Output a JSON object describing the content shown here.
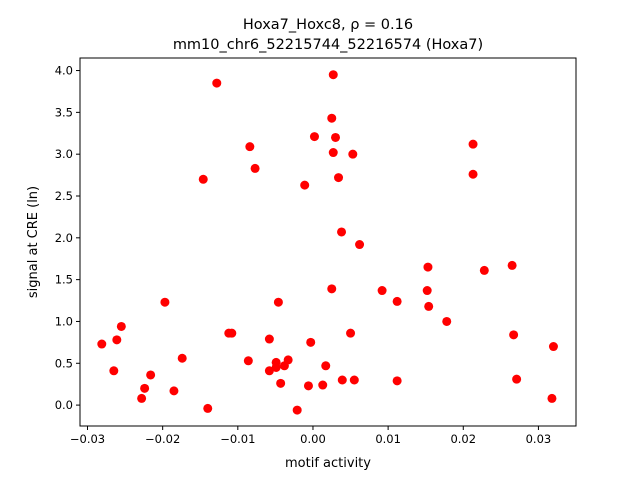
{
  "chart_data": {
    "type": "scatter",
    "title_line1": "Hoxa7_Hoxc8, ρ = 0.16",
    "title_line2": "mm10_chr6_52215744_52216574 (Hoxa7)",
    "xlabel": "motif activity",
    "ylabel": "signal at CRE (ln)",
    "xlim": [
      -0.031,
      0.035
    ],
    "ylim": [
      -0.25,
      4.15
    ],
    "xticks": [
      -0.03,
      -0.02,
      -0.01,
      0.0,
      0.01,
      0.02,
      0.03
    ],
    "xtick_labels": [
      "−0.03",
      "−0.02",
      "−0.01",
      "0.00",
      "0.01",
      "0.02",
      "0.03"
    ],
    "yticks": [
      0,
      0.5,
      1,
      1.5,
      2,
      2.5,
      3,
      3.5,
      4
    ],
    "ytick_labels": [
      "0.0",
      "0.5",
      "1.0",
      "1.5",
      "2.0",
      "2.5",
      "3.0",
      "3.5",
      "4.0"
    ],
    "grid": false,
    "marker_color": "#ff0000",
    "points": [
      [
        -0.0281,
        0.73
      ],
      [
        -0.0265,
        0.41
      ],
      [
        -0.0261,
        0.78
      ],
      [
        -0.0255,
        0.94
      ],
      [
        -0.0228,
        0.08
      ],
      [
        -0.0224,
        0.2
      ],
      [
        -0.0216,
        0.36
      ],
      [
        -0.0197,
        1.23
      ],
      [
        -0.0185,
        0.17
      ],
      [
        -0.0174,
        0.56
      ],
      [
        -0.0146,
        2.7
      ],
      [
        -0.014,
        -0.04
      ],
      [
        -0.0128,
        3.85
      ],
      [
        -0.0112,
        0.86
      ],
      [
        -0.0108,
        0.86
      ],
      [
        -0.0086,
        0.53
      ],
      [
        -0.0084,
        3.09
      ],
      [
        -0.0077,
        2.83
      ],
      [
        -0.0058,
        0.79
      ],
      [
        -0.0058,
        0.41
      ],
      [
        -0.0049,
        0.45
      ],
      [
        -0.0049,
        0.51
      ],
      [
        -0.0046,
        1.23
      ],
      [
        -0.0043,
        0.26
      ],
      [
        -0.0038,
        0.47
      ],
      [
        -0.0033,
        0.54
      ],
      [
        -0.0021,
        -0.06
      ],
      [
        -0.0011,
        2.63
      ],
      [
        -0.0006,
        0.23
      ],
      [
        -0.0003,
        0.75
      ],
      [
        0.0002,
        3.21
      ],
      [
        0.0013,
        0.24
      ],
      [
        0.0017,
        0.47
      ],
      [
        0.0025,
        3.43
      ],
      [
        0.0025,
        1.39
      ],
      [
        0.0027,
        3.95
      ],
      [
        0.0027,
        3.02
      ],
      [
        0.003,
        3.2
      ],
      [
        0.0034,
        2.72
      ],
      [
        0.0038,
        2.07
      ],
      [
        0.0039,
        0.3
      ],
      [
        0.005,
        0.86
      ],
      [
        0.0053,
        3.0
      ],
      [
        0.0055,
        0.3
      ],
      [
        0.0062,
        1.92
      ],
      [
        0.0092,
        1.37
      ],
      [
        0.0112,
        1.24
      ],
      [
        0.0112,
        0.29
      ],
      [
        0.0152,
        1.37
      ],
      [
        0.0153,
        1.65
      ],
      [
        0.0154,
        1.18
      ],
      [
        0.0178,
        1.0
      ],
      [
        0.0213,
        3.12
      ],
      [
        0.0213,
        2.76
      ],
      [
        0.0228,
        1.61
      ],
      [
        0.0265,
        1.67
      ],
      [
        0.0267,
        0.84
      ],
      [
        0.0271,
        0.31
      ],
      [
        0.0318,
        0.08
      ],
      [
        0.032,
        0.7
      ]
    ]
  }
}
